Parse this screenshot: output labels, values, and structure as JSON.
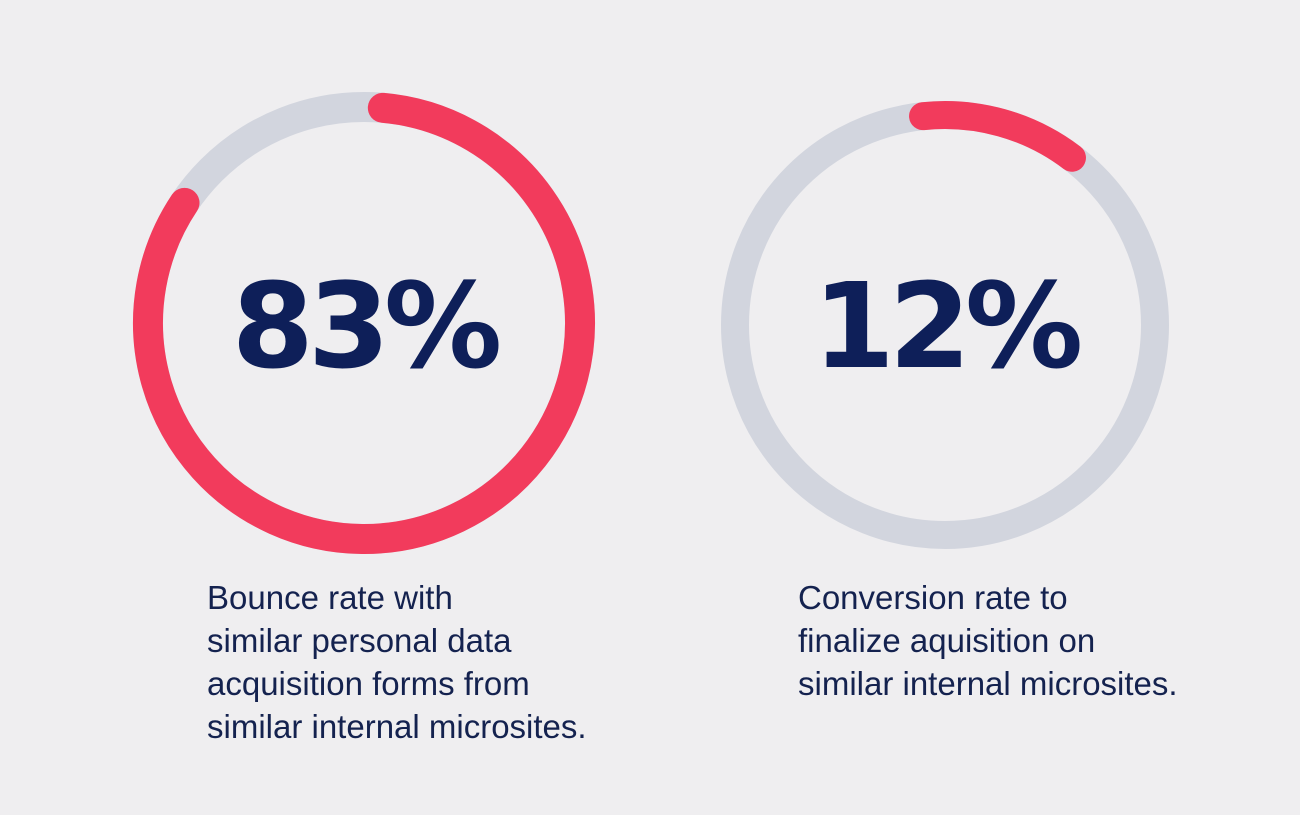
{
  "colors": {
    "background": "#efeef0",
    "track": "#d2d5de",
    "progress": "#f23b5c",
    "value_text": "#0e1f59",
    "caption_text": "#14224f"
  },
  "chart_data": [
    {
      "type": "pie",
      "value": 83,
      "max": 100,
      "value_label": "83%",
      "caption": [
        "Bounce rate with",
        "similar personal data",
        "acquisition forms from",
        "similar internal microsites."
      ]
    },
    {
      "type": "pie",
      "value": 12,
      "max": 100,
      "value_label": "12%",
      "caption": [
        "Conversion rate to",
        "finalize aquisition on",
        "similar internal microsites."
      ]
    }
  ]
}
